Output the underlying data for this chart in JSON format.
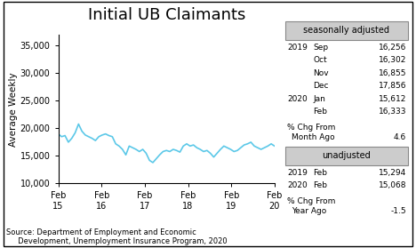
{
  "title": "Initial UB Claimants",
  "ylabel": "Average Weekly",
  "ylim": [
    10000,
    37000
  ],
  "yticks": [
    10000,
    15000,
    20000,
    25000,
    30000,
    35000
  ],
  "xtick_labels": [
    "Feb\n15",
    "Feb\n16",
    "Feb\n17",
    "Feb\n18",
    "Feb\n19",
    "Feb\n20"
  ],
  "line_color": "#5bc8e8",
  "line_width": 1.2,
  "background_color": "#ffffff",
  "source_text": "Source: Department of Employment and Economic\n     Development, Unemployment Insurance Program, 2020",
  "sa_box_label": "seasonally adjusted",
  "sa_data": [
    [
      "2019",
      "Sep",
      "16,256"
    ],
    [
      "",
      "Oct",
      "16,302"
    ],
    [
      "",
      "Nov",
      "16,855"
    ],
    [
      "",
      "Dec",
      "17,856"
    ],
    [
      "2020",
      "Jan",
      "15,612"
    ],
    [
      "",
      "Feb",
      "16,333"
    ]
  ],
  "sa_pct_label": "% Chg From\n Month Ago",
  "sa_pct_value": "4.6",
  "unadj_box_label": "unadjusted",
  "unadj_data": [
    [
      "2019",
      "Feb",
      "15,294"
    ],
    [
      "2020",
      "Feb",
      "15,068"
    ]
  ],
  "unadj_pct_label": "% Chg From\n Year Ago",
  "unadj_pct_value": "-1.5",
  "series": [
    19000,
    18500,
    18700,
    17500,
    18200,
    19200,
    20800,
    19500,
    18800,
    18500,
    18200,
    17800,
    18500,
    18800,
    19000,
    18700,
    18500,
    17200,
    16800,
    16200,
    15200,
    16800,
    16500,
    16200,
    15800,
    16200,
    15500,
    14200,
    13800,
    14500,
    15200,
    15800,
    16000,
    15800,
    16200,
    16000,
    15700,
    16800,
    17200,
    16800,
    17000,
    16500,
    16200,
    15800,
    16000,
    15500,
    14800,
    15500,
    16200,
    16800,
    16500,
    16200,
    15800,
    16000,
    16500,
    17000,
    17200,
    17500,
    16800,
    16500,
    16200,
    16500,
    16800,
    17200,
    16800
  ]
}
